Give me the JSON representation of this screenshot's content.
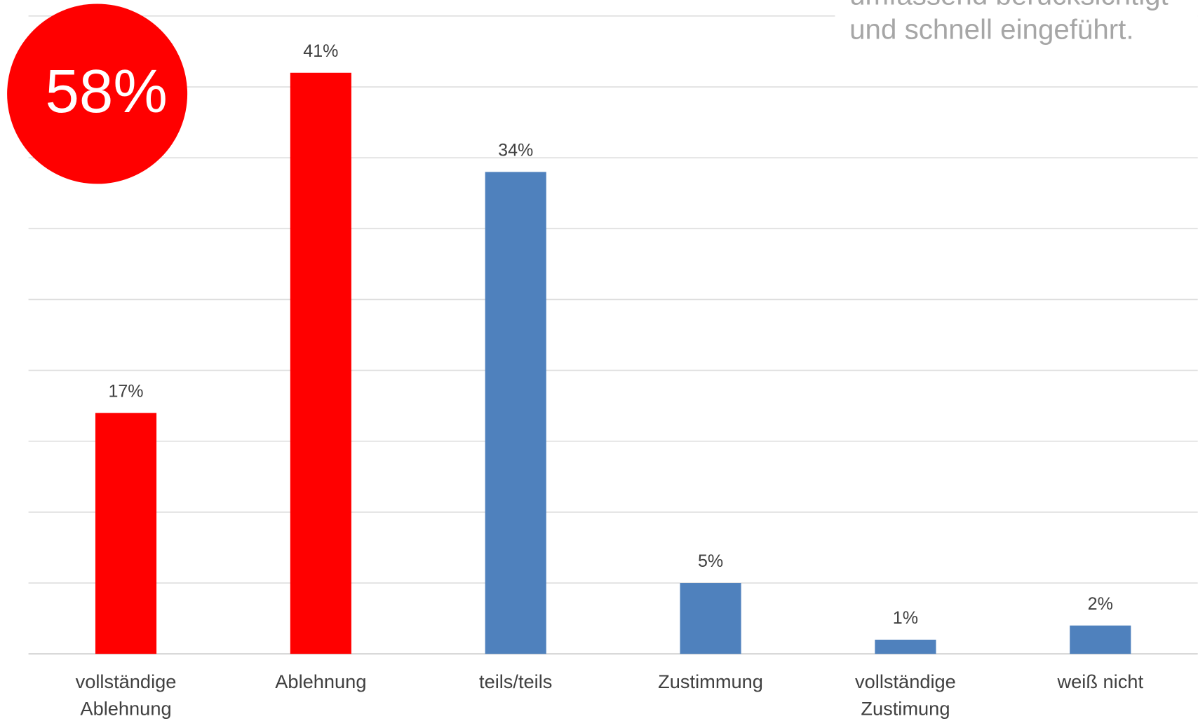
{
  "chart_data": {
    "type": "bar",
    "badge": "58%",
    "annotation": "umfassend berücksichtigt und schnell eingeführt.",
    "categories": [
      "vollständige Ablehnung",
      "Ablehnung",
      "teils/teils",
      "Zustimmung",
      "vollständige Zustimung",
      "weiß nicht"
    ],
    "values": [
      17,
      41,
      34,
      5,
      1,
      2
    ],
    "value_labels": [
      "17%",
      "41%",
      "34%",
      "5%",
      "1%",
      "2%"
    ],
    "colors": [
      "#ff0000",
      "#ff0000",
      "#4f81bd",
      "#4f81bd",
      "#4f81bd",
      "#4f81bd"
    ],
    "badge_color": "#ff0000",
    "ylim": [
      0,
      45
    ],
    "yticks": [
      0,
      5,
      10,
      15,
      20,
      25,
      30,
      35,
      40,
      45
    ],
    "grid": true
  }
}
